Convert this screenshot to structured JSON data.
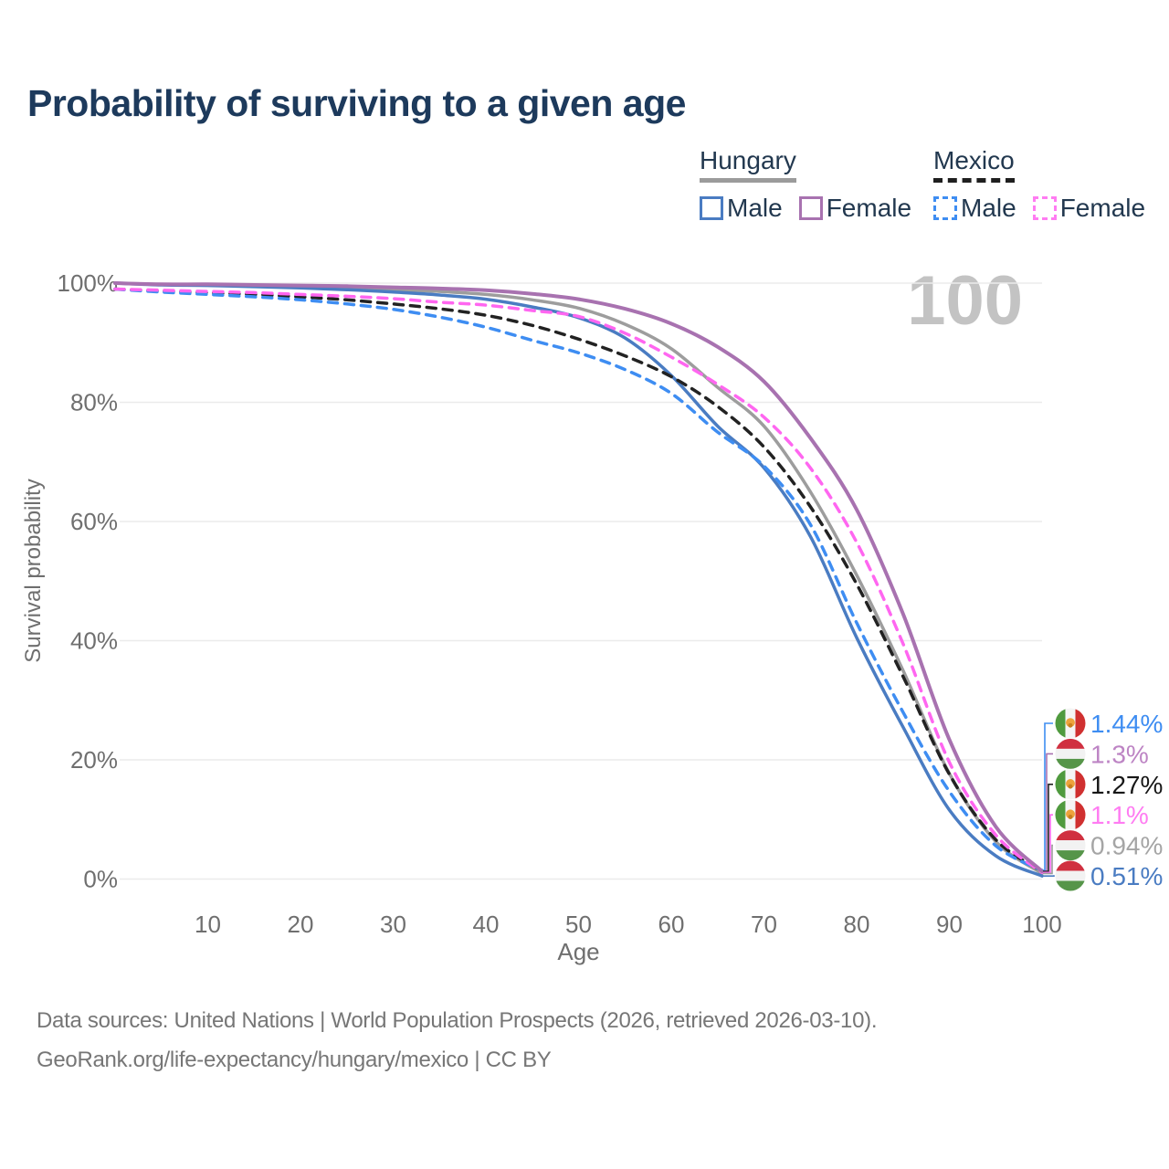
{
  "title": "Probability of surviving to a given age",
  "watermark": "100",
  "legend": {
    "groups": [
      {
        "id": "hungary",
        "label": "Hungary",
        "underline": "solid",
        "underline_color": "#9b9b9b",
        "items": [
          {
            "label": "Male",
            "color": "#4a7cc2",
            "dash": false
          },
          {
            "label": "Female",
            "color": "#a872b0",
            "dash": false
          }
        ]
      },
      {
        "id": "mexico",
        "label": "Mexico",
        "underline": "dashed",
        "underline_color": "#1f1f1f",
        "items": [
          {
            "label": "Male",
            "color": "#3e8df2",
            "dash": true
          },
          {
            "label": "Female",
            "color": "#ff7cf2",
            "dash": true
          }
        ]
      }
    ]
  },
  "chart_data": {
    "type": "line",
    "title": "Probability of surviving to a given age",
    "xlabel": "Age",
    "ylabel": "Survival probability",
    "xlim": [
      0,
      100
    ],
    "ylim": [
      0,
      100
    ],
    "grid": "horizontal",
    "legend_position": "top-right",
    "x_ticks": [
      10,
      20,
      30,
      40,
      50,
      60,
      70,
      80,
      90,
      100
    ],
    "y_ticks": [
      {
        "value": 0,
        "label": "0%"
      },
      {
        "value": 20,
        "label": "20%"
      },
      {
        "value": 40,
        "label": "40%"
      },
      {
        "value": 60,
        "label": "60%"
      },
      {
        "value": 80,
        "label": "80%"
      },
      {
        "value": 100,
        "label": "100%"
      }
    ],
    "ages": [
      0,
      5,
      10,
      15,
      20,
      25,
      30,
      35,
      40,
      45,
      50,
      55,
      60,
      65,
      70,
      75,
      80,
      85,
      90,
      95,
      100
    ],
    "series": [
      {
        "name": "Hungary Male",
        "country": "Hungary",
        "sex": "Male",
        "line": "solid",
        "color": "#4a7cc2",
        "label_color": "#4a7cc2",
        "flag": "hungary",
        "end_label": "0.51%",
        "values": [
          100,
          99.7,
          99.6,
          99.4,
          99.2,
          98.9,
          98.5,
          98.0,
          97.3,
          96.0,
          94.2,
          90.8,
          84.5,
          76.0,
          69.0,
          57.5,
          40.5,
          25.5,
          11.6,
          3.9,
          0.51
        ]
      },
      {
        "name": "Hungary Female",
        "country": "Hungary",
        "sex": "Female",
        "line": "solid",
        "color": "#a872b0",
        "label_color": "#bd84c4",
        "flag": "hungary",
        "end_label": "1.3%",
        "values": [
          100,
          99.8,
          99.8,
          99.7,
          99.6,
          99.5,
          99.3,
          99.1,
          98.8,
          98.2,
          97.3,
          95.7,
          93.2,
          89.3,
          83.5,
          74.0,
          62.0,
          44.5,
          23.4,
          8.8,
          1.3
        ]
      },
      {
        "name": "Hungary Total",
        "country": "Hungary",
        "sex": "Total",
        "line": "solid",
        "color": "#9d9d9d",
        "label_color": "#a5a5a5",
        "flag": "hungary",
        "end_label": "0.94%",
        "values": [
          100,
          99.8,
          99.7,
          99.6,
          99.4,
          99.2,
          98.9,
          98.6,
          98.1,
          97.2,
          95.8,
          93.1,
          89.0,
          82.5,
          76.0,
          65.0,
          51.0,
          35.0,
          17.7,
          6.3,
          0.94
        ]
      },
      {
        "name": "Mexico Male",
        "country": "Mexico",
        "sex": "Male",
        "line": "dashed",
        "color": "#3e8df2",
        "label_color": "#3e8df2",
        "flag": "mexico",
        "end_label": "1.44%",
        "values": [
          99,
          98.5,
          98.1,
          97.7,
          97.2,
          96.5,
          95.6,
          94.3,
          92.6,
          90.4,
          88.3,
          85.5,
          81.5,
          75.0,
          69.3,
          59.5,
          43.0,
          28.0,
          14.7,
          5.6,
          1.44
        ]
      },
      {
        "name": "Mexico Female",
        "country": "Mexico",
        "sex": "Female",
        "line": "dashed",
        "color": "#ff66f0",
        "label_color": "#ff7cf2",
        "flag": "mexico",
        "end_label": "1.1%",
        "values": [
          99,
          98.8,
          98.6,
          98.4,
          98.1,
          97.8,
          97.4,
          96.8,
          96.3,
          95.4,
          94.4,
          91.6,
          87.6,
          83.0,
          77.5,
          69.0,
          56.5,
          39.5,
          19.6,
          7.4,
          1.1
        ]
      },
      {
        "name": "Mexico Total",
        "country": "Mexico",
        "sex": "Total",
        "line": "dashed",
        "color": "#222222",
        "label_color": "#171717",
        "flag": "mexico",
        "end_label": "1.27%",
        "values": [
          99,
          98.7,
          98.4,
          98.1,
          97.7,
          97.2,
          96.5,
          95.7,
          94.6,
          92.9,
          90.6,
          87.8,
          84.3,
          79.3,
          72.5,
          62.5,
          49.5,
          34.0,
          17.6,
          6.6,
          1.27
        ]
      }
    ]
  },
  "footer": {
    "line1": "Data sources: United Nations | World Population Prospects (2026, retrieved 2026-03-10).",
    "line2": "GeoRank.org/life-expectancy/hungary/mexico | CC BY"
  }
}
